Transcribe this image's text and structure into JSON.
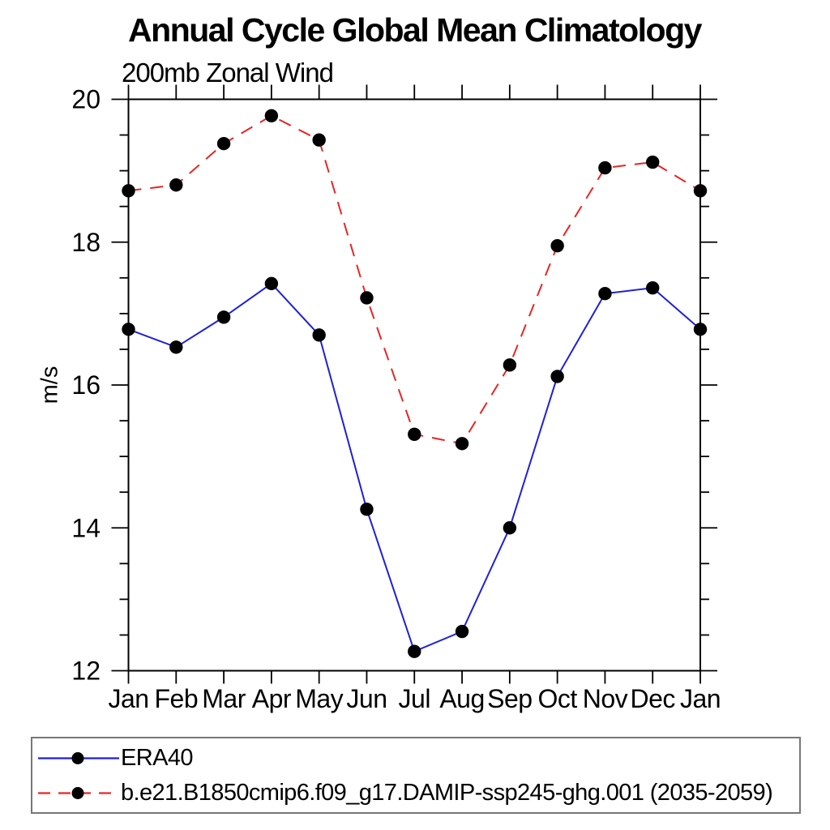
{
  "title": "Annual Cycle Global Mean Climatology",
  "subtitle": "200mb Zonal Wind",
  "ylabel": "m/s",
  "colors": {
    "era40_line": "#1f1fd9",
    "model_line": "#e62626",
    "marker": "#000000",
    "axis": "#000000",
    "legend_border": "#777777"
  },
  "chart_data": {
    "type": "line",
    "title": "Annual Cycle Global Mean Climatology",
    "subtitle": "200mb Zonal Wind",
    "xlabel": "",
    "ylabel": "m/s",
    "categories": [
      "Jan",
      "Feb",
      "Mar",
      "Apr",
      "May",
      "Jun",
      "Jul",
      "Aug",
      "Sep",
      "Oct",
      "Nov",
      "Dec",
      "Jan"
    ],
    "ylim": [
      12,
      20
    ],
    "y_major_ticks": [
      12,
      14,
      16,
      18,
      20
    ],
    "y_minor_step": 0.5,
    "grid": false,
    "frame": "box",
    "legend_position": "bottom-left-box",
    "series": [
      {
        "name": "ERA40",
        "color": "#1f1fd9",
        "line_style": "solid",
        "marker": "circle",
        "marker_color": "#000000",
        "values": [
          16.78,
          16.53,
          16.95,
          17.42,
          16.7,
          14.26,
          12.27,
          12.55,
          14.0,
          16.12,
          17.28,
          17.36,
          16.78
        ]
      },
      {
        "name": "b.e21.B1850cmip6.f09_g17.DAMIP-ssp245-ghg.001 (2035-2059)",
        "color": "#e62626",
        "line_style": "dashed",
        "marker": "circle",
        "marker_color": "#000000",
        "values": [
          18.72,
          18.8,
          19.38,
          19.77,
          19.43,
          17.22,
          15.31,
          15.18,
          16.28,
          17.95,
          19.04,
          19.12,
          18.72
        ]
      }
    ]
  }
}
